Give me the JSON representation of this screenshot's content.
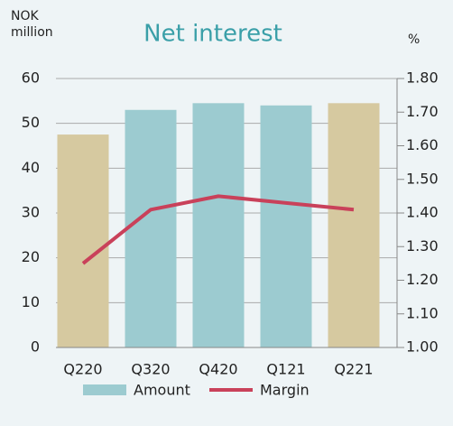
{
  "chart_data": {
    "type": "bar_line",
    "title": "Net interest",
    "ylabel": [
      "NOK",
      "million"
    ],
    "y2label": "%",
    "categories": [
      "Q220",
      "Q320",
      "Q420",
      "Q121",
      "Q221"
    ],
    "series": [
      {
        "name": "Amount",
        "type": "bar",
        "color": "#9ccbd0",
        "colors": [
          "#d6c9a0",
          "#9ccbd0",
          "#9ccbd0",
          "#9ccbd0",
          "#d6c9a0"
        ],
        "values": [
          47.5,
          53,
          54.5,
          54,
          54.5
        ]
      },
      {
        "name": "Margin",
        "type": "line",
        "axis": "y2",
        "color": "#c9415a",
        "values": [
          1.25,
          1.41,
          1.45,
          1.43,
          1.41
        ]
      }
    ],
    "ylim": [
      0,
      60
    ],
    "yticks": [
      0,
      10,
      20,
      30,
      40,
      50,
      60
    ],
    "y2lim": [
      1.0,
      1.8
    ],
    "y2ticks": [
      {
        "value": 1.0,
        "label": "1.00"
      },
      {
        "value": 1.1,
        "label": "1.10"
      },
      {
        "value": 1.2,
        "label": "1.20"
      },
      {
        "value": 1.3,
        "label": "1.30"
      },
      {
        "value": 1.4,
        "label": "1.40"
      },
      {
        "value": 1.5,
        "label": "1.50"
      },
      {
        "value": 1.6,
        "label": "1.60"
      },
      {
        "value": 1.7,
        "label": "1.70"
      },
      {
        "value": 1.8,
        "label": "1.80"
      }
    ],
    "grid": true
  }
}
